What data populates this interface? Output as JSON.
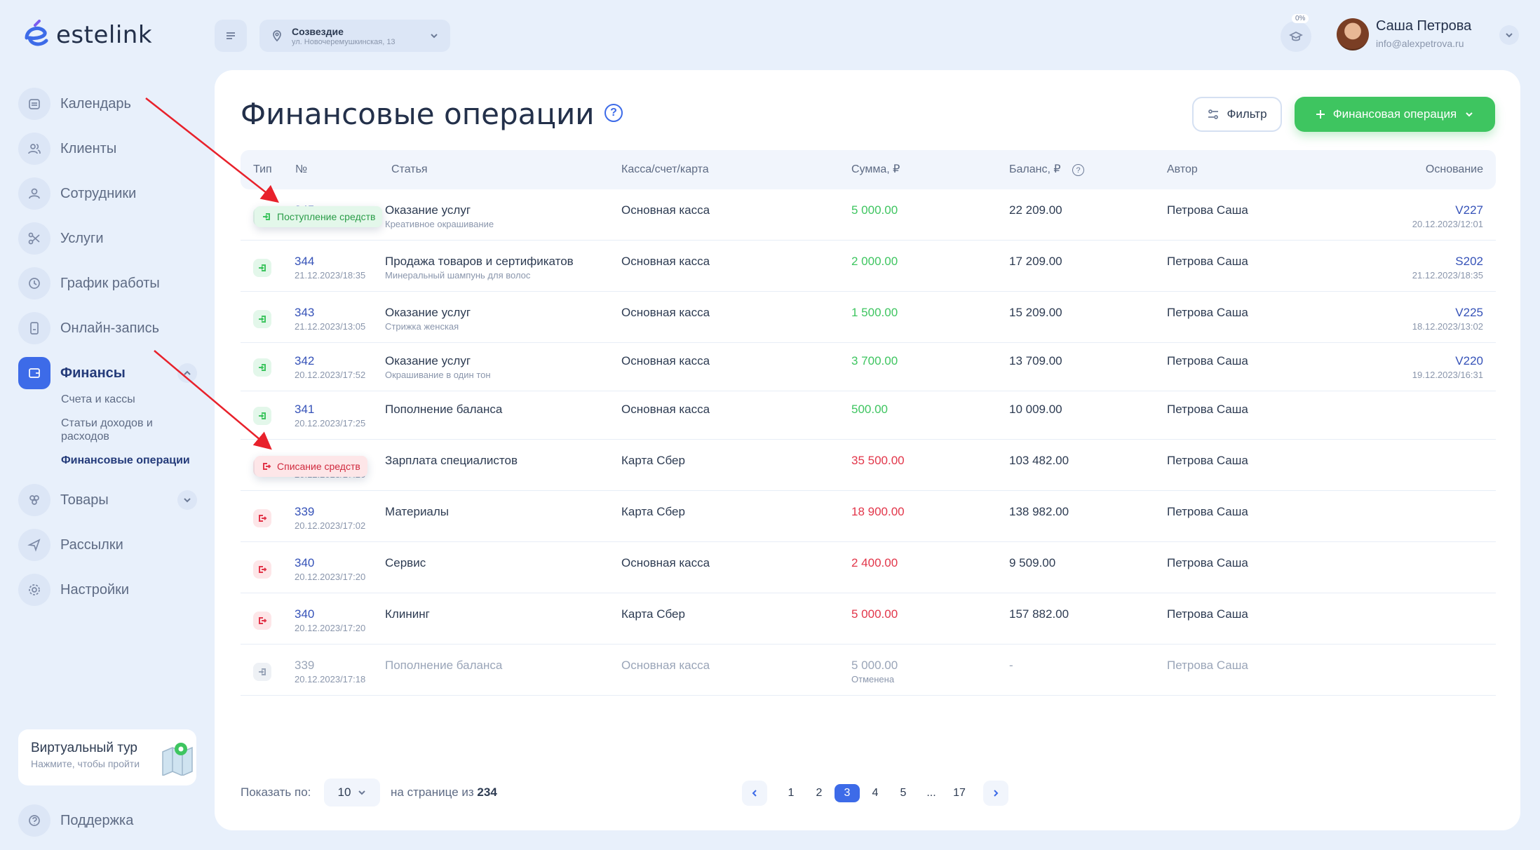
{
  "app": {
    "logo_text": "estelink"
  },
  "sidebar": {
    "items": [
      {
        "label": "Календарь",
        "icon": "calendar-icon"
      },
      {
        "label": "Клиенты",
        "icon": "clients-icon"
      },
      {
        "label": "Сотрудники",
        "icon": "user-icon"
      },
      {
        "label": "Услуги",
        "icon": "scissors-icon"
      },
      {
        "label": "График работы",
        "icon": "clock-icon"
      },
      {
        "label": "Онлайн-запись",
        "icon": "phone-icon"
      },
      {
        "label": "Финансы",
        "icon": "wallet-icon"
      },
      {
        "label": "Товары",
        "icon": "products-icon"
      },
      {
        "label": "Рассылки",
        "icon": "send-icon"
      },
      {
        "label": "Настройки",
        "icon": "gear-icon"
      }
    ],
    "finance_sub": [
      "Счета и кассы",
      "Статьи доходов и расходов",
      "Финансовые операции"
    ],
    "tour": {
      "title": "Виртуальный тур",
      "subtitle": "Нажмите, чтобы пройти"
    },
    "support": "Поддержка"
  },
  "header": {
    "location_name": "Созвездие",
    "location_address": "ул. Новочеремушкинская, 13",
    "progress_badge": "0%",
    "user_name": "Саша Петрова",
    "user_email": "info@alexpetrova.ru"
  },
  "page": {
    "title": "Финансовые операции",
    "help": "?",
    "filter_label": "Фильтр",
    "add_label": "Финансовая операция"
  },
  "table": {
    "headers": {
      "type": "Тип",
      "num": "№",
      "article": "Статья",
      "account": "Касса/счет/карта",
      "amount": "Сумма, ₽",
      "balance": "Баланс, ₽",
      "author": "Автор",
      "basis": "Основание"
    },
    "rows": [
      {
        "kind": "in",
        "num": "345",
        "date": "20.12.2023/12:01",
        "article": "Оказание услуг",
        "article_sub": "Креативное окрашивание",
        "account": "Основная касса",
        "amount": "5 000.00",
        "balance": "22 209.00",
        "author": "Петрова Саша",
        "basis": "V227",
        "basis_date": "20.12.2023/12:01"
      },
      {
        "kind": "in",
        "num": "344",
        "date": "21.12.2023/18:35",
        "article": "Продажа товаров и сертификатов",
        "article_sub": "Минеральный шампунь для волос",
        "account": "Основная касса",
        "amount": "2 000.00",
        "balance": "17 209.00",
        "author": "Петрова Саша",
        "basis": "S202",
        "basis_date": "21.12.2023/18:35"
      },
      {
        "kind": "in",
        "num": "343",
        "date": "21.12.2023/13:05",
        "article": "Оказание услуг",
        "article_sub": "Стрижка женская",
        "account": "Основная касса",
        "amount": "1 500.00",
        "balance": "15 209.00",
        "author": "Петрова Саша",
        "basis": "V225",
        "basis_date": "18.12.2023/13:02"
      },
      {
        "kind": "in",
        "num": "342",
        "date": "20.12.2023/17:52",
        "article": "Оказание услуг",
        "article_sub": "Окрашивание в один тон",
        "account": "Основная касса",
        "amount": "3 700.00",
        "balance": "13 709.00",
        "author": "Петрова Саша",
        "basis": "V220",
        "basis_date": "19.12.2023/16:31"
      },
      {
        "kind": "in",
        "num": "341",
        "date": "20.12.2023/17:25",
        "article": "Пополнение баланса",
        "article_sub": "",
        "account": "Основная касса",
        "amount": "500.00",
        "balance": "10 009.00",
        "author": "Петрова Саша",
        "basis": "",
        "basis_date": ""
      },
      {
        "kind": "out",
        "num": "340",
        "date": "20.12.2023/17:20",
        "article": "Зарплата специалистов",
        "article_sub": "",
        "account": "Карта Сбер",
        "amount": "35 500.00",
        "balance": "103 482.00",
        "author": "Петрова Саша",
        "basis": "",
        "basis_date": ""
      },
      {
        "kind": "out",
        "num": "339",
        "date": "20.12.2023/17:02",
        "article": "Материалы",
        "article_sub": "",
        "account": "Карта Сбер",
        "amount": "18 900.00",
        "balance": "138 982.00",
        "author": "Петрова Саша",
        "basis": "",
        "basis_date": ""
      },
      {
        "kind": "out",
        "num": "340",
        "date": "20.12.2023/17:20",
        "article": "Сервис",
        "article_sub": "",
        "account": "Основная касса",
        "amount": "2 400.00",
        "balance": "9 509.00",
        "author": "Петрова Саша",
        "basis": "",
        "basis_date": ""
      },
      {
        "kind": "out",
        "num": "340",
        "date": "20.12.2023/17:20",
        "article": "Клининг",
        "article_sub": "",
        "account": "Карта Сбер",
        "amount": "5 000.00",
        "balance": "157 882.00",
        "author": "Петрова Саша",
        "basis": "",
        "basis_date": ""
      },
      {
        "kind": "gray",
        "num": "339",
        "date": "20.12.2023/17:18",
        "article": "Пополнение баланса",
        "article_sub": "",
        "account": "Основная касса",
        "amount": "5 000.00",
        "amount_sub": "Отменена",
        "balance": "-",
        "author": "Петрова Саша",
        "basis": "",
        "basis_date": ""
      }
    ]
  },
  "tooltips": {
    "income": "Поступление средств",
    "expense": "Списание средств"
  },
  "footer": {
    "show_label": "Показать по:",
    "per_page": "10",
    "of_label": "на странице из",
    "total": "234",
    "pages": [
      "1",
      "2",
      "3",
      "4",
      "5",
      "...",
      "17"
    ],
    "current_page": "3"
  },
  "colors": {
    "accent": "#3d6be8",
    "income": "#3ec560",
    "expense": "#e2364a",
    "annotation_arrow": "#e8212b"
  }
}
